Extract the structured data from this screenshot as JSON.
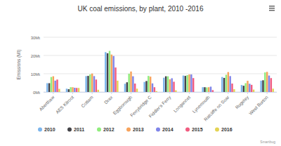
{
  "chart_data": {
    "type": "bar",
    "title": "UK coal emissions, by plant, 2010 -2016",
    "y_label": "Emissions (Mt)",
    "credits": "Smartbug",
    "categories": [
      "Aberthaw",
      "AES Kilroot",
      "Cottam",
      "Drax",
      "Eggborough",
      "Ferrybridge C",
      "Fiddler's Ferry",
      "Longannet",
      "Lynemouth",
      "Ratcliffe on Soar",
      "Rugeley",
      "West Burton"
    ],
    "series": [
      {
        "name": "2010",
        "color": "#7cb5ec",
        "values": [
          4.8,
          1.8,
          8.7,
          21.8,
          4.5,
          5.5,
          7.8,
          9.0,
          2.6,
          8.2,
          3.8,
          6.2
        ]
      },
      {
        "name": "2011",
        "color": "#434348",
        "values": [
          4.8,
          1.5,
          8.8,
          21.2,
          5.3,
          6.0,
          8.6,
          8.8,
          2.6,
          7.7,
          3.4,
          6.4
        ]
      },
      {
        "name": "2012",
        "color": "#90ed7d",
        "values": [
          8.2,
          2.6,
          9.6,
          22.5,
          10.0,
          8.8,
          8.6,
          9.2,
          2.5,
          9.4,
          4.8,
          10.7
        ]
      },
      {
        "name": "2013",
        "color": "#f7a35c",
        "values": [
          8.6,
          2.6,
          10.1,
          20.5,
          11.2,
          8.4,
          6.9,
          9.6,
          2.6,
          10.9,
          6.1,
          11.0
        ]
      },
      {
        "name": "2014",
        "color": "#8085e9",
        "values": [
          6.2,
          2.3,
          8.7,
          19.7,
          8.6,
          4.7,
          7.5,
          9.6,
          2.9,
          8.7,
          4.5,
          9.0
        ]
      },
      {
        "name": "2015",
        "color": "#f15c80",
        "values": [
          6.8,
          2.2,
          6.8,
          13.4,
          4.6,
          2.6,
          5.6,
          7.6,
          1.0,
          4.6,
          3.9,
          7.6
        ]
      },
      {
        "name": "2016",
        "color": "#e4d354",
        "values": [
          1.7,
          2.2,
          1.2,
          6.2,
          1.8,
          0.5,
          0.9,
          0,
          0,
          1.5,
          1.3,
          1.8
        ]
      }
    ],
    "ylim": [
      0,
      30
    ],
    "yticks": [
      {
        "value": 0,
        "label": "0Mt"
      },
      {
        "value": 10,
        "label": "10Mt"
      },
      {
        "value": 20,
        "label": "20Mt"
      },
      {
        "value": 30,
        "label": "30Mt"
      }
    ],
    "grid": true,
    "legend": "bottom"
  }
}
